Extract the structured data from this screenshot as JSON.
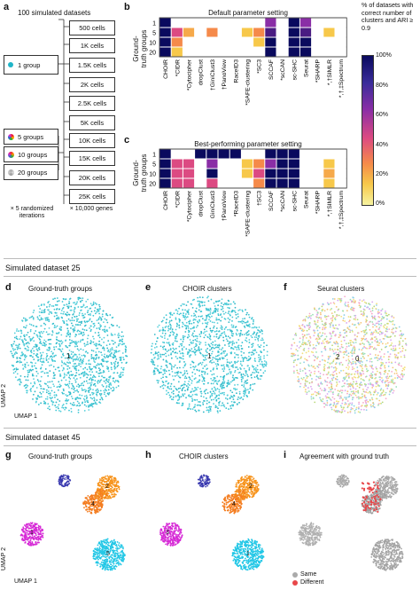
{
  "panel_a": {
    "letter": "a",
    "title": "100 simulated datasets",
    "groups": [
      "1 group",
      "5 groups",
      "10 groups",
      "20 groups"
    ],
    "cells_top": [
      "500 cells",
      "1K cells",
      "1.5K cells",
      "2K cells",
      "2.5K cells"
    ],
    "cells_bottom": [
      "5K cells",
      "10K cells",
      "15K cells",
      "20K cells",
      "25K cells"
    ],
    "footer_left": "× 5 randomized iterations",
    "footer_right": "× 10,000 genes"
  },
  "panel_b": {
    "letter": "b",
    "title": "Default parameter setting",
    "ylabel": "Ground-truth groups"
  },
  "panel_c": {
    "letter": "c",
    "title": "Best-performing parameter setting",
    "ylabel": "Ground-truth groups"
  },
  "colorbar": {
    "title": "% of datasets with correct number of clusters and ARI ≥ 0.9",
    "ticks": [
      "100%",
      "80%",
      "60%",
      "40%",
      "20%",
      "0%"
    ],
    "colors": [
      "#0a0a5e",
      "#5a2aa0",
      "#c0379a",
      "#f06a55",
      "#f7b840",
      "#f6f070"
    ]
  },
  "section_25": {
    "title": "Simulated dataset 25"
  },
  "section_45": {
    "title": "Simulated dataset 45"
  },
  "panel_d": {
    "letter": "d",
    "title": "Ground-truth groups",
    "labels": [
      "1"
    ]
  },
  "panel_e": {
    "letter": "e",
    "title": "CHOIR clusters",
    "labels": [
      "1"
    ]
  },
  "panel_f": {
    "letter": "f",
    "title": "Seurat clusters",
    "labels": [
      "2",
      "0"
    ]
  },
  "panel_g": {
    "letter": "g",
    "title": "Ground-truth groups",
    "labels": [
      "1",
      "2",
      "3",
      "4",
      "5"
    ]
  },
  "panel_h": {
    "letter": "h",
    "title": "CHOIR clusters",
    "labels": [
      "1",
      "2",
      "3",
      "4",
      "5"
    ]
  },
  "panel_i": {
    "letter": "i",
    "title": "Agreement with ground truth",
    "legend_same": "Same",
    "legend_different": "Different"
  },
  "axes": {
    "umap1": "UMAP 1",
    "umap2": "UMAP 2"
  },
  "chart_data": [
    {
      "type": "heatmap",
      "title": "Default parameter setting",
      "ylabel": "Ground-truth groups",
      "rows": [
        "1",
        "5",
        "10",
        "20"
      ],
      "columns": [
        "CHOIR",
        "*CIDR",
        "*Cytocipher",
        "dropClust",
        "†GiniClust3",
        "†PanoView",
        "RaceID3",
        "*SAFE-clustering",
        "*SC3",
        "SCCAF",
        "*scCAN",
        "sc-SHC",
        "Seurat",
        "*SHARP",
        "*,†SIMLR",
        "*,†,‡Spectrum"
      ],
      "values": [
        [
          100,
          0,
          0,
          0,
          0,
          0,
          0,
          0,
          0,
          80,
          0,
          100,
          80,
          0,
          0,
          0
        ],
        [
          100,
          60,
          30,
          0,
          40,
          0,
          0,
          20,
          40,
          90,
          0,
          100,
          90,
          0,
          20,
          0
        ],
        [
          100,
          40,
          0,
          0,
          0,
          0,
          0,
          0,
          20,
          100,
          0,
          100,
          100,
          0,
          0,
          0
        ],
        [
          100,
          20,
          0,
          0,
          0,
          0,
          0,
          0,
          0,
          100,
          0,
          100,
          100,
          0,
          0,
          0
        ]
      ]
    },
    {
      "type": "heatmap",
      "title": "Best-performing parameter setting",
      "ylabel": "Ground-truth groups",
      "rows": [
        "1",
        "5",
        "10",
        "20"
      ],
      "columns": [
        "CHOIR",
        "*CIDR",
        "*Cytocipher",
        "dropClust",
        "GiniClust3",
        "†PanoView",
        "*RaceID3",
        "*SAFE-clustering",
        "†SC3",
        "SCCAF",
        "*scCAN",
        "sc-SHC",
        "Seurat",
        "*SHARP",
        "*,†SIMLR",
        "*,†,‡Spectrum"
      ],
      "values": [
        [
          100,
          0,
          0,
          100,
          100,
          100,
          100,
          0,
          0,
          100,
          100,
          100,
          0,
          0,
          0,
          0
        ],
        [
          100,
          60,
          60,
          0,
          80,
          0,
          0,
          20,
          40,
          80,
          100,
          100,
          0,
          0,
          20,
          0
        ],
        [
          100,
          60,
          60,
          0,
          100,
          0,
          0,
          20,
          60,
          100,
          100,
          100,
          0,
          0,
          30,
          0
        ],
        [
          100,
          60,
          60,
          0,
          60,
          0,
          0,
          0,
          40,
          100,
          100,
          100,
          0,
          0,
          20,
          0
        ]
      ]
    }
  ]
}
